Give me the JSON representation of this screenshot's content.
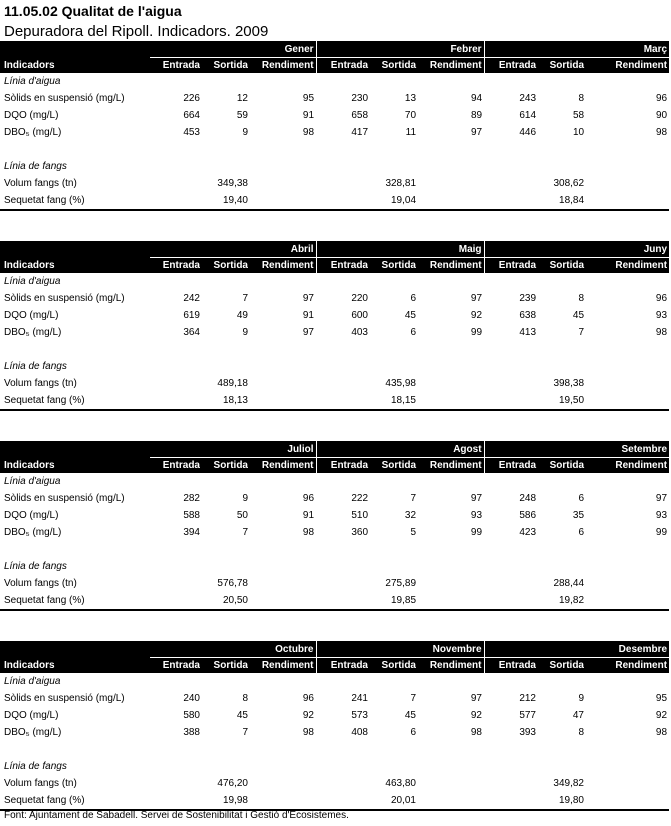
{
  "title": "11.05.02 Qualitat de l'aigua",
  "subtitle": "Depuradora del Ripoll. Indicadors. 2009",
  "header_indicators": "Indicadors",
  "col_labels": [
    "Entrada",
    "Sortida",
    "Rendiment"
  ],
  "section_water": "Línia d'aigua",
  "section_sludge": "Línia de fangs",
  "row_labels": {
    "solids": "Sòlids en suspensió (mg/L)",
    "dqo": "DQO (mg/L)",
    "dbo": "DBO₅ (mg/L)",
    "volum": "Volum fangs (tn)",
    "sequetat": "Sequetat fang (%)"
  },
  "blocks": [
    {
      "months": [
        "Gener",
        "Febrer",
        "Març"
      ],
      "solids": [
        [
          "226",
          "12",
          "95"
        ],
        [
          "230",
          "13",
          "94"
        ],
        [
          "243",
          "8",
          "96"
        ]
      ],
      "dqo": [
        [
          "664",
          "59",
          "91"
        ],
        [
          "658",
          "70",
          "89"
        ],
        [
          "614",
          "58",
          "90"
        ]
      ],
      "dbo": [
        [
          "453",
          "9",
          "98"
        ],
        [
          "417",
          "11",
          "97"
        ],
        [
          "446",
          "10",
          "98"
        ]
      ],
      "volum": [
        "349,38",
        "328,81",
        "308,62"
      ],
      "sequetat": [
        "19,40",
        "19,04",
        "18,84"
      ]
    },
    {
      "months": [
        "Abril",
        "Maig",
        "Juny"
      ],
      "solids": [
        [
          "242",
          "7",
          "97"
        ],
        [
          "220",
          "6",
          "97"
        ],
        [
          "239",
          "8",
          "96"
        ]
      ],
      "dqo": [
        [
          "619",
          "49",
          "91"
        ],
        [
          "600",
          "45",
          "92"
        ],
        [
          "638",
          "45",
          "93"
        ]
      ],
      "dbo": [
        [
          "364",
          "9",
          "97"
        ],
        [
          "403",
          "6",
          "99"
        ],
        [
          "413",
          "7",
          "98"
        ]
      ],
      "volum": [
        "489,18",
        "435,98",
        "398,38"
      ],
      "sequetat": [
        "18,13",
        "18,15",
        "19,50"
      ]
    },
    {
      "months": [
        "Juliol",
        "Agost",
        "Setembre"
      ],
      "solids": [
        [
          "282",
          "9",
          "96"
        ],
        [
          "222",
          "7",
          "97"
        ],
        [
          "248",
          "6",
          "97"
        ]
      ],
      "dqo": [
        [
          "588",
          "50",
          "91"
        ],
        [
          "510",
          "32",
          "93"
        ],
        [
          "586",
          "35",
          "93"
        ]
      ],
      "dbo": [
        [
          "394",
          "7",
          "98"
        ],
        [
          "360",
          "5",
          "99"
        ],
        [
          "423",
          "6",
          "99"
        ]
      ],
      "volum": [
        "576,78",
        "275,89",
        "288,44"
      ],
      "sequetat": [
        "20,50",
        "19,85",
        "19,82"
      ]
    },
    {
      "months": [
        "Octubre",
        "Novembre",
        "Desembre"
      ],
      "solids": [
        [
          "240",
          "8",
          "96"
        ],
        [
          "241",
          "7",
          "97"
        ],
        [
          "212",
          "9",
          "95"
        ]
      ],
      "dqo": [
        [
          "580",
          "45",
          "92"
        ],
        [
          "573",
          "45",
          "92"
        ],
        [
          "577",
          "47",
          "92"
        ]
      ],
      "dbo": [
        [
          "388",
          "7",
          "98"
        ],
        [
          "408",
          "6",
          "98"
        ],
        [
          "393",
          "8",
          "98"
        ]
      ],
      "volum": [
        "476,20",
        "463,80",
        "349,82"
      ],
      "sequetat": [
        "19,98",
        "20,01",
        "19,80"
      ]
    }
  ],
  "source": "Font: Ajuntament de Sabadell. Servei de Sostenibilitat i Gestió d'Ecosistemes."
}
